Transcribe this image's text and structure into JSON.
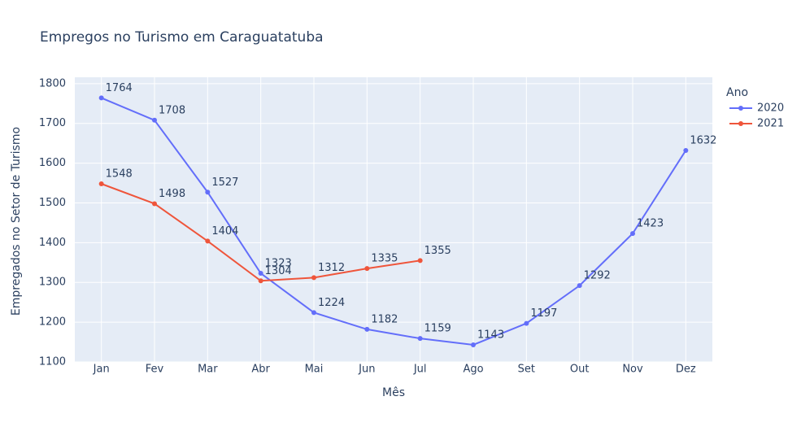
{
  "chart_data": {
    "type": "line",
    "title": "Empregos no Turismo em Caraguatatuba",
    "x_label": "Mês",
    "y_label": "Empregados no Setor de Turismo",
    "legend_title": "Ano",
    "legend_position": "right",
    "categories": [
      "Jan",
      "Fev",
      "Mar",
      "Abr",
      "Mai",
      "Jun",
      "Jul",
      "Ago",
      "Set",
      "Out",
      "Nov",
      "Dez"
    ],
    "series": [
      {
        "name": "2020",
        "color": "#636efa",
        "values": [
          1764,
          1708,
          1527,
          1323,
          1224,
          1182,
          1159,
          1143,
          1197,
          1292,
          1423,
          1632
        ]
      },
      {
        "name": "2021",
        "color": "#ef553b",
        "values": [
          1548,
          1498,
          1404,
          1304,
          1312,
          1335,
          1355,
          null,
          null,
          null,
          null,
          null
        ]
      }
    ],
    "ylim": [
      1100,
      1816
    ],
    "yticks": [
      1100,
      1200,
      1300,
      1400,
      1500,
      1600,
      1700,
      1800
    ],
    "grid": true
  }
}
